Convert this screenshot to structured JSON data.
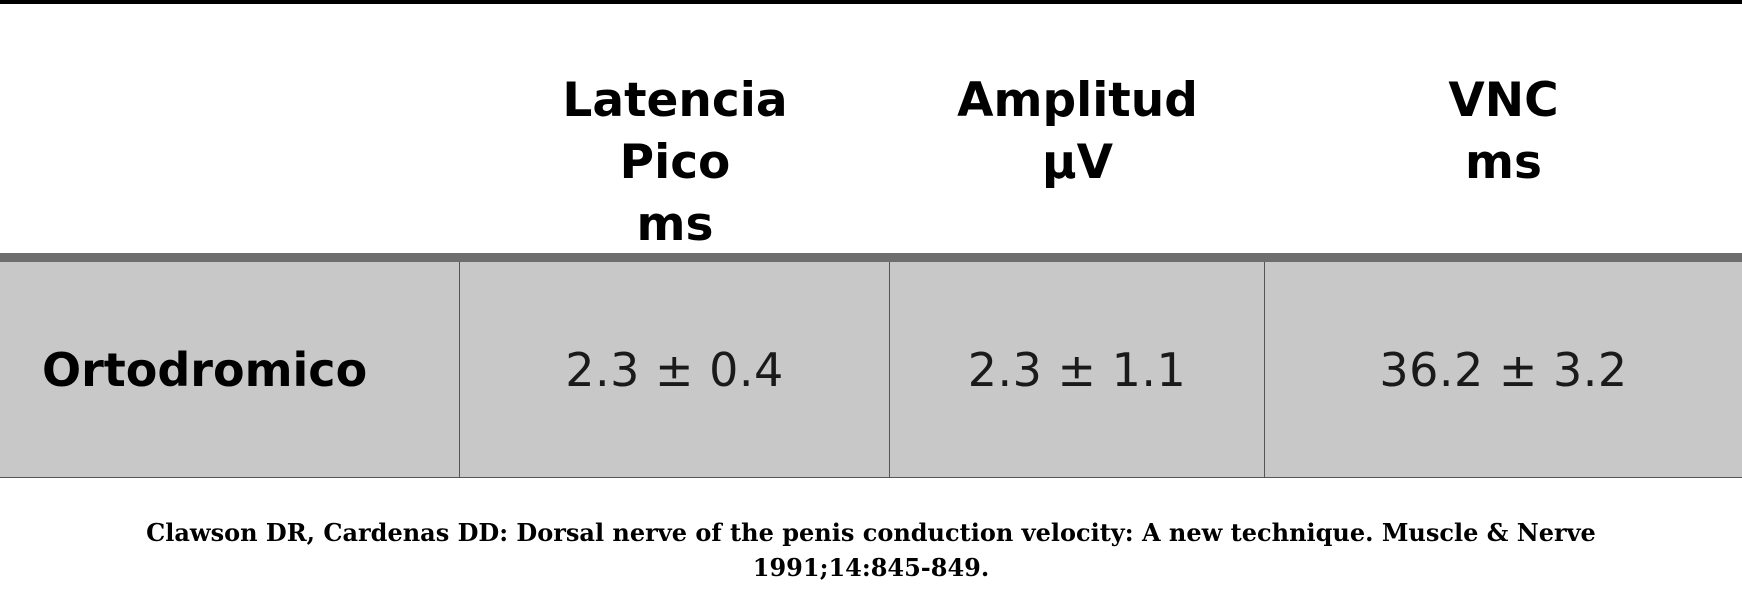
{
  "table": {
    "headers": [
      {
        "lines": [
          "Latencia",
          "Pico",
          "ms"
        ]
      },
      {
        "lines": [
          "Amplitud",
          "µV"
        ]
      },
      {
        "lines": [
          "VNC",
          "ms"
        ]
      }
    ],
    "rows": [
      {
        "label": "Ortodromico",
        "values": [
          "2.3 ± 0.4",
          "2.3 ± 1.1",
          "36.2 ± 3.2"
        ]
      }
    ]
  },
  "citation": {
    "text": "Clawson DR, Cardenas DD: Dorsal nerve of the penis conduction velocity: A new technique. Muscle & Nerve 1991;14:845-849."
  },
  "colors": {
    "top_rule": "#000000",
    "header_rule": "#6e6e6e",
    "row_background": "#c8c8c8",
    "cell_border": "#555555"
  }
}
